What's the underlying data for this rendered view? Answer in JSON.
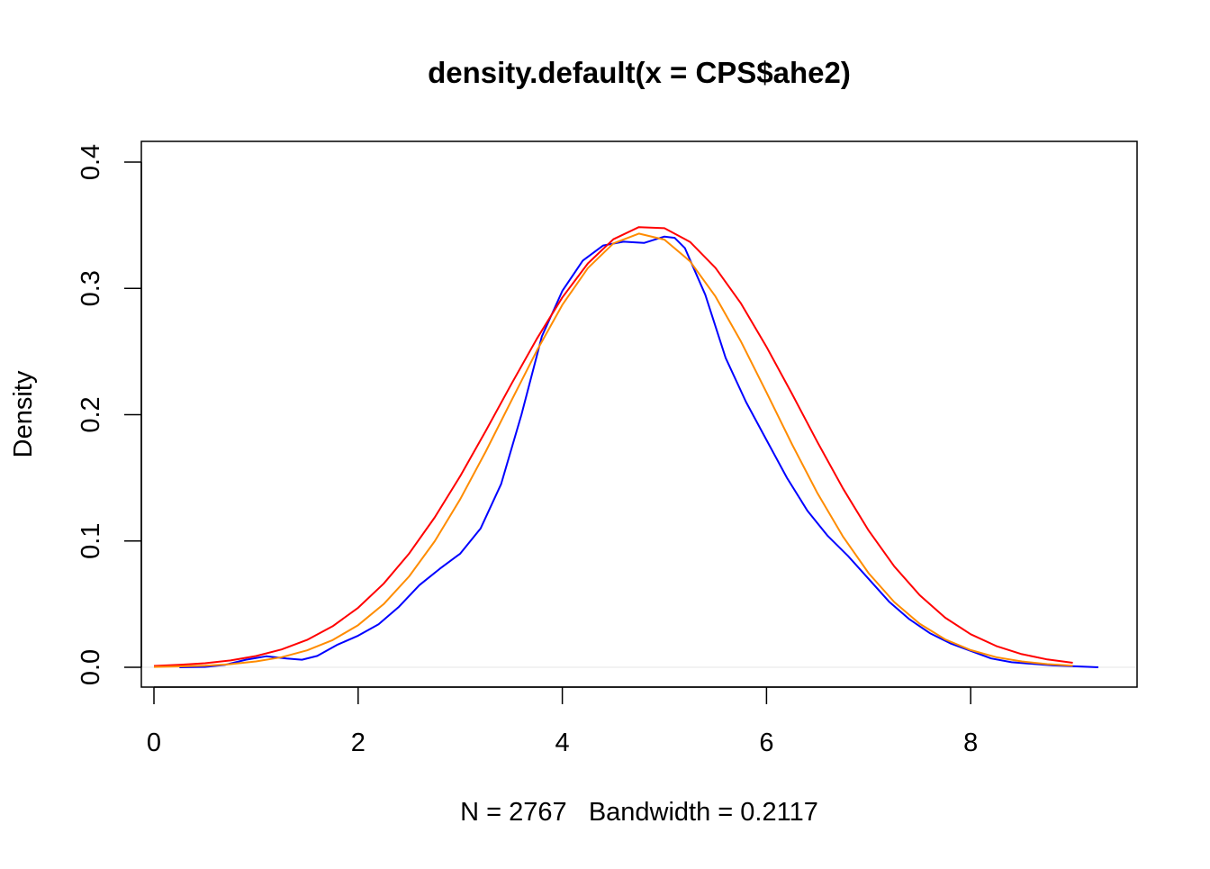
{
  "chart_data": {
    "type": "line",
    "title": "density.default(x = CPS$ahe2)",
    "xlabel": "N = 2767   Bandwidth = 0.2117",
    "ylabel": "Density",
    "xlim": [
      -0.1,
      9.4
    ],
    "ylim": [
      0,
      0.4
    ],
    "xticks": [
      "0",
      "2",
      "4",
      "6",
      "8"
    ],
    "yticks": [
      "0.0",
      "0.1",
      "0.2",
      "0.3",
      "0.4"
    ],
    "grid": false,
    "baseline": {
      "y": 0,
      "color": "#e6e6e6"
    },
    "series": [
      {
        "color": "#0000ff",
        "x": [
          0.25,
          0.5,
          0.7,
          0.9,
          1.1,
          1.3,
          1.45,
          1.6,
          1.8,
          2.0,
          2.2,
          2.4,
          2.6,
          2.8,
          3.0,
          3.2,
          3.4,
          3.6,
          3.8,
          4.0,
          4.2,
          4.4,
          4.6,
          4.8,
          5.0,
          5.1,
          5.2,
          5.4,
          5.6,
          5.8,
          6.0,
          6.2,
          6.4,
          6.6,
          6.8,
          7.0,
          7.2,
          7.4,
          7.6,
          7.8,
          8.0,
          8.2,
          8.4,
          8.8,
          9.25
        ],
        "y": [
          0,
          0.0003,
          0.002,
          0.006,
          0.0087,
          0.007,
          0.006,
          0.009,
          0.018,
          0.025,
          0.034,
          0.048,
          0.065,
          0.078,
          0.09,
          0.11,
          0.145,
          0.2,
          0.262,
          0.298,
          0.322,
          0.334,
          0.337,
          0.336,
          0.341,
          0.34,
          0.332,
          0.295,
          0.245,
          0.21,
          0.18,
          0.15,
          0.124,
          0.104,
          0.088,
          0.07,
          0.052,
          0.038,
          0.027,
          0.019,
          0.013,
          0.007,
          0.004,
          0.0015,
          0
        ]
      },
      {
        "color": "#ff0000",
        "x": [
          0,
          0.25,
          0.5,
          0.75,
          1,
          1.25,
          1.5,
          1.75,
          2,
          2.25,
          2.5,
          2.75,
          3,
          3.25,
          3.5,
          3.75,
          4,
          4.25,
          4.5,
          4.75,
          5,
          5.25,
          5.5,
          5.75,
          6,
          6.25,
          6.5,
          6.75,
          7,
          7.25,
          7.5,
          7.75,
          8,
          8.25,
          8.5,
          8.75,
          9
        ],
        "y": [
          0.0011,
          0.0019,
          0.0032,
          0.0054,
          0.0089,
          0.0141,
          0.0217,
          0.0325,
          0.0471,
          0.0662,
          0.0901,
          0.1187,
          0.1514,
          0.1871,
          0.2241,
          0.2601,
          0.2928,
          0.3198,
          0.3389,
          0.3485,
          0.3477,
          0.3368,
          0.3163,
          0.288,
          0.2537,
          0.2164,
          0.1781,
          0.1414,
          0.1083,
          0.08,
          0.0571,
          0.0393,
          0.0262,
          0.0168,
          0.0104,
          0.0062,
          0.0036
        ]
      },
      {
        "color": "#ff8c00",
        "x": [
          0,
          0.25,
          0.5,
          0.75,
          1,
          1.25,
          1.5,
          1.75,
          2,
          2.25,
          2.5,
          2.75,
          3,
          3.25,
          3.5,
          3.75,
          4,
          4.25,
          4.5,
          4.75,
          5,
          5.25,
          5.5,
          5.75,
          6,
          6.25,
          6.5,
          6.75,
          7,
          7.25,
          7.5,
          7.75,
          8,
          8.25,
          8.5,
          8.75,
          9
        ],
        "y": [
          0.0003,
          0.0007,
          0.0013,
          0.0025,
          0.0046,
          0.008,
          0.0134,
          0.0215,
          0.0334,
          0.05,
          0.072,
          0.0998,
          0.1331,
          0.1708,
          0.2109,
          0.2507,
          0.2869,
          0.3161,
          0.3356,
          0.3434,
          0.3386,
          0.3215,
          0.2936,
          0.2578,
          0.2176,
          0.1765,
          0.1377,
          0.1033,
          0.0745,
          0.0517,
          0.0345,
          0.0221,
          0.0136,
          0.008,
          0.0046,
          0.0025,
          0.0013
        ]
      }
    ]
  }
}
